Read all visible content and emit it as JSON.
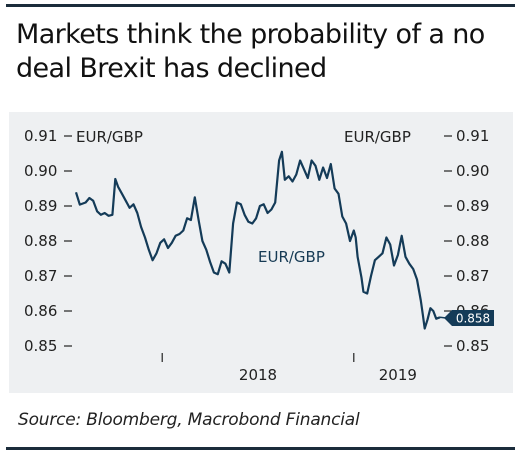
{
  "title": "Markets think the probability of a no deal Brexit has declined",
  "source": "Source: Bloomberg, Macrobond Financial",
  "colors": {
    "line": "#143b58",
    "panel": "#eef0f2",
    "rule": "#1b2c3b",
    "badge": "#143b58"
  },
  "chart_data": {
    "type": "line",
    "title": "Markets think the probability of a no deal Brexit has declined",
    "left_axis_label": "EUR/GBP",
    "right_axis_label": "EUR/GBP",
    "ylim": [
      0.85,
      0.91
    ],
    "yticks": [
      0.91,
      0.9,
      0.89,
      0.88,
      0.87,
      0.86,
      0.85
    ],
    "ytick_labels": [
      "0.91",
      "0.90",
      "0.89",
      "0.88",
      "0.87",
      "0.86",
      "0.85"
    ],
    "xlim": [
      2017.55,
      2019.45
    ],
    "year_dividers": [
      2018.0,
      2019.0
    ],
    "xtick_labels": [
      {
        "label": "2018",
        "x": 2018.5
      },
      {
        "label": "2019",
        "x": 2019.23
      }
    ],
    "last_value": 0.858,
    "last_value_label": "0.858",
    "series": [
      {
        "name": "EUR/GBP",
        "points": [
          [
            2017.55,
            0.8939
          ],
          [
            2017.57,
            0.8904
          ],
          [
            2017.6,
            0.891
          ],
          [
            2017.62,
            0.8923
          ],
          [
            2017.64,
            0.8915
          ],
          [
            2017.66,
            0.8885
          ],
          [
            2017.68,
            0.8875
          ],
          [
            2017.7,
            0.888
          ],
          [
            2017.72,
            0.8872
          ],
          [
            2017.74,
            0.8875
          ],
          [
            2017.755,
            0.8977
          ],
          [
            2017.77,
            0.8955
          ],
          [
            2017.79,
            0.8935
          ],
          [
            2017.81,
            0.8915
          ],
          [
            2017.83,
            0.8895
          ],
          [
            2017.85,
            0.8905
          ],
          [
            2017.87,
            0.888
          ],
          [
            2017.89,
            0.884
          ],
          [
            2017.91,
            0.881
          ],
          [
            2017.93,
            0.8775
          ],
          [
            2017.95,
            0.8745
          ],
          [
            2017.97,
            0.8765
          ],
          [
            2017.99,
            0.8795
          ],
          [
            2018.01,
            0.8805
          ],
          [
            2018.03,
            0.878
          ],
          [
            2018.05,
            0.8795
          ],
          [
            2018.07,
            0.8815
          ],
          [
            2018.09,
            0.882
          ],
          [
            2018.11,
            0.883
          ],
          [
            2018.13,
            0.8865
          ],
          [
            2018.15,
            0.886
          ],
          [
            2018.17,
            0.8925
          ],
          [
            2018.19,
            0.886
          ],
          [
            2018.21,
            0.88
          ],
          [
            2018.23,
            0.8775
          ],
          [
            2018.25,
            0.874
          ],
          [
            2018.27,
            0.871
          ],
          [
            2018.29,
            0.8705
          ],
          [
            2018.31,
            0.8742
          ],
          [
            2018.33,
            0.8735
          ],
          [
            2018.35,
            0.871
          ],
          [
            2018.37,
            0.885
          ],
          [
            2018.39,
            0.891
          ],
          [
            2018.41,
            0.8905
          ],
          [
            2018.43,
            0.8875
          ],
          [
            2018.45,
            0.8855
          ],
          [
            2018.47,
            0.885
          ],
          [
            2018.49,
            0.8865
          ],
          [
            2018.51,
            0.89
          ],
          [
            2018.53,
            0.8905
          ],
          [
            2018.55,
            0.888
          ],
          [
            2018.57,
            0.889
          ],
          [
            2018.59,
            0.891
          ],
          [
            2018.61,
            0.903
          ],
          [
            2018.625,
            0.9055
          ],
          [
            2018.64,
            0.8975
          ],
          [
            2018.66,
            0.8985
          ],
          [
            2018.68,
            0.897
          ],
          [
            2018.7,
            0.899
          ],
          [
            2018.72,
            0.903
          ],
          [
            2018.74,
            0.9005
          ],
          [
            2018.76,
            0.898
          ],
          [
            2018.78,
            0.903
          ],
          [
            2018.8,
            0.9015
          ],
          [
            2018.82,
            0.8975
          ],
          [
            2018.84,
            0.901
          ],
          [
            2018.86,
            0.898
          ],
          [
            2018.88,
            0.902
          ],
          [
            2018.9,
            0.895
          ],
          [
            2018.92,
            0.8935
          ],
          [
            2018.94,
            0.887
          ],
          [
            2018.96,
            0.885
          ],
          [
            2018.98,
            0.88
          ],
          [
            2019.0,
            0.883
          ],
          [
            2019.01,
            0.881
          ],
          [
            2019.02,
            0.8755
          ],
          [
            2019.04,
            0.8695
          ],
          [
            2019.05,
            0.8655
          ],
          [
            2019.07,
            0.865
          ],
          [
            2019.09,
            0.87
          ],
          [
            2019.11,
            0.8745
          ],
          [
            2019.13,
            0.8755
          ],
          [
            2019.15,
            0.8765
          ],
          [
            2019.17,
            0.881
          ],
          [
            2019.19,
            0.879
          ],
          [
            2019.21,
            0.873
          ],
          [
            2019.23,
            0.876
          ],
          [
            2019.25,
            0.8815
          ],
          [
            2019.27,
            0.8755
          ],
          [
            2019.29,
            0.8735
          ],
          [
            2019.31,
            0.872
          ],
          [
            2019.33,
            0.869
          ],
          [
            2019.35,
            0.863
          ],
          [
            2019.36,
            0.859
          ],
          [
            2019.37,
            0.855
          ],
          [
            2019.385,
            0.8575
          ],
          [
            2019.4,
            0.8608
          ],
          [
            2019.415,
            0.86
          ],
          [
            2019.43,
            0.8578
          ],
          [
            2019.45,
            0.8582
          ]
        ]
      }
    ]
  }
}
